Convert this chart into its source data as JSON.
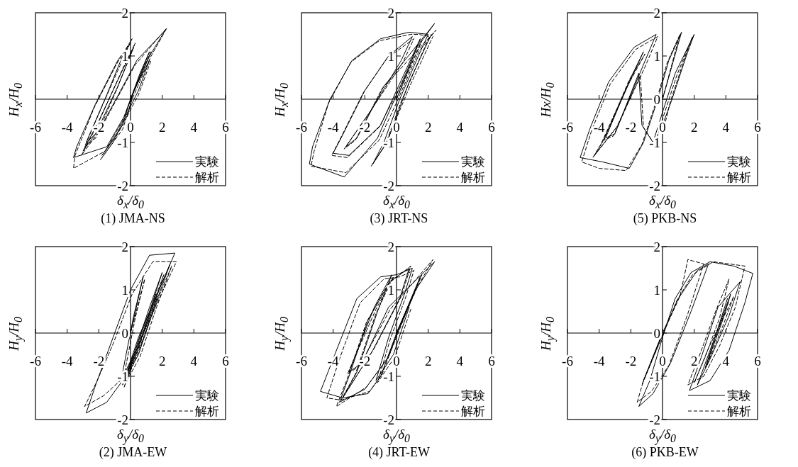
{
  "chart_data": [
    {
      "type": "line",
      "title": "(1) JMA-NS",
      "xlabel": "δ$_{x}$/δ$_{0}$",
      "ylabel": "H$_{x}$/H$_{0}$",
      "xlim": [
        -6,
        6
      ],
      "ylim": [
        -2,
        2
      ],
      "xticks": [
        -6,
        -4,
        -2,
        0,
        2,
        4,
        6
      ],
      "yticks": [
        -2,
        -1,
        1,
        2
      ],
      "legend": "bottom right",
      "grid": false,
      "marker": "none",
      "series": [
        {
          "name": "実験",
          "color": "#000000",
          "line_style": "solid",
          "x": [
            0,
            1.2,
            0.6,
            -0.4,
            -1.5,
            -3.6,
            -3.4,
            -2.2,
            -0.8,
            0,
            -0.5,
            -1.5,
            -2.8,
            -2.2,
            -0.8,
            0.2,
            -0.6,
            -2,
            -3,
            -1.8,
            0.4,
            2.2,
            1.2,
            0,
            -0.5,
            -1.8,
            -1,
            0.5,
            1.2,
            0.2,
            -0.2
          ],
          "values": [
            0,
            1.1,
            0.6,
            -0.4,
            -1.1,
            -1.35,
            -1.1,
            -0.1,
            0.9,
            1.3,
            1,
            0.1,
            -1,
            -0.8,
            0.3,
            1.2,
            0.6,
            -0.5,
            -1.2,
            -0.6,
            0.9,
            1.6,
            1,
            0,
            -0.6,
            -1.3,
            -0.9,
            0.2,
            0.9,
            0.2,
            -0.4
          ]
        },
        {
          "name": "解析",
          "color": "#000000",
          "line_style": "dashed",
          "x": [
            0,
            1.3,
            0.6,
            -0.5,
            -1.6,
            -3.6,
            -3.5,
            -2.3,
            -0.9,
            0.1,
            -0.4,
            -1.6,
            -2.9,
            -2.2,
            -0.9,
            0.3,
            -0.5,
            -2.1,
            -3.1,
            -1.9,
            0.3,
            2.3,
            1.3,
            0.1,
            -0.5,
            -1.9,
            -1.1,
            0.5,
            1.3
          ],
          "values": [
            0,
            1.1,
            0.55,
            -0.5,
            -1.2,
            -1.6,
            -1.3,
            -0.2,
            0.8,
            1.4,
            1,
            0,
            -1.1,
            -0.9,
            0.2,
            1.3,
            0.7,
            -0.6,
            -1.3,
            -0.7,
            0.8,
            1.65,
            1,
            0,
            -0.7,
            -1.4,
            -1,
            0.1,
            0.9
          ]
        }
      ]
    },
    {
      "type": "line",
      "title": "(3) JRT-NS",
      "xlabel": "δ$_{x}$/δ$_{0}$",
      "ylabel": "H$_{x}$/H$_{0}$",
      "xlim": [
        -6,
        6
      ],
      "ylim": [
        -2,
        2
      ],
      "xticks": [
        -6,
        -4,
        -2,
        0,
        2,
        4,
        6
      ],
      "yticks": [
        -2,
        -1,
        1,
        2
      ],
      "legend": "bottom right",
      "grid": false,
      "marker": "none",
      "series": [
        {
          "name": "実験",
          "color": "#000000",
          "line_style": "solid",
          "x": [
            0,
            1.5,
            0.5,
            -1,
            -3,
            -4,
            -3.5,
            -2,
            -0.5,
            1,
            0.3,
            -1.5,
            -3.2,
            -2.5,
            -0.8,
            2.4,
            1.3,
            0,
            -1.2,
            -3.3,
            -5.5,
            -5.3,
            -4.2,
            -2.8,
            -1,
            0.8,
            2,
            1.5,
            0.2,
            -0.8,
            -1.5,
            -0.6,
            0.8,
            2.2
          ],
          "values": [
            0,
            1.4,
            0.6,
            -0.6,
            -1.3,
            -1.25,
            -0.9,
            0.2,
            1,
            1.45,
            0.9,
            -0.2,
            -1.1,
            -0.9,
            0.3,
            1.75,
            1.2,
            0.1,
            -0.9,
            -1.8,
            -1.5,
            -1.1,
            0,
            0.9,
            1.4,
            1.55,
            1.5,
            1.1,
            0,
            -1,
            -1.5,
            -1,
            0.4,
            1.5
          ]
        },
        {
          "name": "解析",
          "color": "#000000",
          "line_style": "dashed",
          "x": [
            0,
            1.6,
            0.6,
            -1.1,
            -3.1,
            -4.1,
            -3.6,
            -2.1,
            -0.6,
            1.1,
            0.4,
            -1.6,
            -3.3,
            -2.6,
            -0.9,
            2.5,
            1.4,
            0.1,
            -1.1,
            -3.2,
            -5.4,
            -5.2,
            -4.3,
            -2.9,
            -1.1,
            0.9,
            1.4,
            2.1,
            1.6,
            0.3,
            -0.7,
            -1.6,
            -0.7,
            0.9,
            2.3
          ],
          "values": [
            0,
            1.35,
            0.55,
            -0.65,
            -1.35,
            -1.3,
            -0.95,
            0.15,
            0.95,
            1.4,
            0.85,
            -0.25,
            -1.15,
            -0.95,
            0.25,
            1.6,
            1.1,
            0,
            -0.95,
            -1.7,
            -1.55,
            -1.2,
            -0.1,
            0.85,
            1.35,
            1.5,
            1.5,
            1.45,
            1.05,
            -0.05,
            -1.05,
            -1.55,
            -1.05,
            0.35,
            1.45
          ]
        }
      ]
    },
    {
      "type": "line",
      "title": "(5) PKB-NS",
      "xlabel": "δ$_{x}$/δ$_{0}$",
      "ylabel": "Hx/H$_{0}$",
      "xlim": [
        -6,
        6
      ],
      "ylim": [
        -2,
        2
      ],
      "xticks": [
        -6,
        -4,
        -2,
        0,
        2,
        4,
        6
      ],
      "yticks": [
        -2,
        -1,
        0,
        1,
        2
      ],
      "legend": "bottom right",
      "grid": false,
      "marker": "none",
      "series": [
        {
          "name": "実験",
          "color": "#000000",
          "line_style": "solid",
          "x": [
            0,
            1.2,
            0.4,
            -0.3,
            -1.2,
            -2.1,
            -3.8,
            -5.2,
            -4.6,
            -3.4,
            -1.8,
            -0.4,
            -1.2,
            -2.8,
            -4.3,
            -3.8,
            -2.2,
            -1.2,
            -2,
            -3.6,
            -3,
            -1.5,
            -1.3,
            -0.6,
            0,
            0.8,
            2,
            1.5,
            0.6,
            0
          ],
          "values": [
            0,
            1.55,
            0.9,
            0,
            -1,
            -1.6,
            -1.45,
            -1.35,
            -0.7,
            0.4,
            1.2,
            1.5,
            0.8,
            -0.6,
            -1.3,
            -1,
            0.3,
            1.1,
            0.5,
            -0.9,
            -0.8,
            0.6,
            -0.6,
            -1,
            -0.3,
            0.6,
            1.5,
            1,
            0,
            -0.6
          ]
        },
        {
          "name": "解析",
          "color": "#000000",
          "line_style": "dashed",
          "x": [
            0,
            1.1,
            0.3,
            -0.4,
            -1.3,
            -2.3,
            -4,
            -5.1,
            -4.5,
            -3.3,
            -1.7,
            -0.3,
            -1.1,
            -2.9,
            -4.4,
            -3.9,
            -2.3,
            -1.1,
            -2.1,
            -3.7,
            -3.1,
            -1.4,
            -1.2,
            -0.5,
            0.1,
            0.9,
            1.9,
            1.4,
            0.5,
            0.1
          ],
          "values": [
            0,
            1.5,
            0.85,
            -0.05,
            -1.05,
            -1.65,
            -1.6,
            -1.45,
            -0.75,
            0.35,
            1.15,
            1.45,
            0.75,
            -0.65,
            -1.35,
            -1.05,
            0.25,
            1.05,
            0.45,
            -0.95,
            -0.85,
            0.55,
            -0.65,
            -1.05,
            -0.35,
            0.55,
            1.45,
            0.95,
            -0.05,
            -0.65
          ]
        }
      ]
    },
    {
      "type": "line",
      "title": "(2) JMA-EW",
      "xlabel": "δ$_{y}$/δ$_{0}$",
      "ylabel": "H$_{y}$/H$_{0}$",
      "xlim": [
        -6,
        6
      ],
      "ylim": [
        -2,
        2
      ],
      "xticks": [
        -6,
        -4,
        -2,
        {
          "value": 0,
          "label": null
        },
        2,
        4,
        6
      ],
      "yticks": [
        -2,
        -1,
        0,
        1,
        2
      ],
      "legend": "bottom right",
      "grid": false,
      "marker": "none",
      "series": [
        {
          "name": "実験",
          "color": "#000000",
          "line_style": "solid",
          "x": [
            0,
            0.8,
            0.2,
            -0.6,
            0.2,
            1.2,
            2,
            1.2,
            0,
            -0.5,
            0.5,
            2.8,
            1.2,
            0,
            -1.2,
            -2.2,
            -2.8,
            -1.5,
            -0.3,
            0.8,
            1.8,
            2.5,
            1.5,
            0.5,
            -0.4,
            0.6,
            1.6
          ],
          "values": [
            0,
            1.3,
            0.4,
            -1.1,
            -0.5,
            0.6,
            1.4,
            0.5,
            -0.7,
            -1.2,
            -0.1,
            1.85,
            1.8,
            1,
            -0.2,
            -1.2,
            -1.85,
            -1.6,
            -1,
            0,
            1,
            1.6,
            0.6,
            -0.5,
            -1.1,
            -0.2,
            0.9
          ]
        },
        {
          "name": "解析",
          "color": "#000000",
          "line_style": "dashed",
          "x": [
            0,
            0.9,
            0.3,
            -0.5,
            0.3,
            1.3,
            2.1,
            1.3,
            0.1,
            -0.4,
            0.6,
            2.9,
            1.4,
            0.1,
            -1.1,
            -2.1,
            -2.9,
            -1.7,
            -0.2,
            0.9,
            1.9,
            2.6,
            1.6,
            0.6,
            -0.3,
            0.7,
            1.7
          ],
          "values": [
            0,
            1.25,
            0.35,
            -1.15,
            -0.55,
            0.55,
            1.35,
            0.45,
            -0.75,
            -1.25,
            -0.15,
            1.65,
            1.65,
            0.9,
            -0.25,
            -1.1,
            -1.7,
            -1.45,
            -0.95,
            -0.05,
            0.95,
            1.55,
            0.55,
            -0.55,
            -1.15,
            -0.25,
            0.85
          ]
        }
      ]
    },
    {
      "type": "line",
      "title": "(4) JRT-EW",
      "xlabel": "δ$_{y}$/δ$_{0}$",
      "ylabel": "H$_{y}$/H$_{0}$",
      "xlim": [
        -6,
        6
      ],
      "ylim": [
        -2,
        2
      ],
      "xticks": [
        -6,
        -4,
        -2,
        0,
        2,
        4,
        6
      ],
      "yticks": [
        -2,
        -1,
        1,
        2
      ],
      "legend": "bottom right",
      "grid": false,
      "marker": "none",
      "series": [
        {
          "name": "実験",
          "color": "#000000",
          "line_style": "solid",
          "x": [
            0,
            1.5,
            0.6,
            -0.6,
            -2,
            -3.6,
            -3,
            -1.8,
            -0.4,
            0.8,
            0.2,
            -1.5,
            -3.4,
            -2.5,
            -1.2,
            -0.3,
            -1.4,
            -3,
            -2.2,
            -0.5,
            2.4,
            1.2,
            0,
            -1,
            -1.8,
            -3.4,
            -4.8,
            -3.9,
            -2.5,
            -1,
            0,
            1,
            0.5,
            -0.5,
            -1.3,
            -0.2,
            0.8
          ],
          "values": [
            0,
            1.3,
            0.5,
            -0.6,
            -1.3,
            -1.6,
            -1,
            0.3,
            1.2,
            1.5,
            0.8,
            -0.4,
            -1.5,
            -0.9,
            0.5,
            1.35,
            0.6,
            -0.9,
            -0.7,
            0.6,
            1.65,
            1,
            0,
            -1,
            -1.4,
            -1.5,
            -1.35,
            -0.5,
            0.8,
            1.3,
            1.35,
            1.5,
            0.9,
            -0.1,
            -1.1,
            -0.5,
            0.6
          ]
        },
        {
          "name": "解析",
          "color": "#000000",
          "line_style": "dashed",
          "x": [
            0,
            1.6,
            0.7,
            -0.5,
            -1.9,
            -3.8,
            -3.1,
            -1.9,
            -0.5,
            0.9,
            0.3,
            -1.4,
            -3.5,
            -2.6,
            -1.3,
            -0.2,
            -1.3,
            -3.1,
            -2.3,
            -0.4,
            2.3,
            1.3,
            0.1,
            -0.9,
            -1.7,
            -3.5,
            -4.4,
            -3.6,
            -2.3,
            -0.8,
            0.2,
            1.1,
            0.6,
            -0.4,
            -1.2,
            -0.1,
            0.9
          ],
          "values": [
            0,
            1.35,
            0.55,
            -0.55,
            -1.25,
            -1.7,
            -1.05,
            0.25,
            1.15,
            1.55,
            0.85,
            -0.35,
            -1.55,
            -0.95,
            0.45,
            1.3,
            0.55,
            -0.95,
            -0.75,
            0.55,
            1.7,
            1.05,
            0.05,
            -0.95,
            -1.35,
            -1.55,
            -1.5,
            -0.6,
            0.7,
            1.25,
            1.3,
            1.45,
            0.85,
            -0.15,
            -1.15,
            -0.55,
            0.55
          ]
        }
      ]
    },
    {
      "type": "line",
      "title": "(6) PKB-EW",
      "xlabel": "δ$_{y}$/δ$_{0}$",
      "ylabel": "H$_{y}$/H$_{0}$",
      "xlim": [
        -6,
        6
      ],
      "ylim": [
        -2,
        2
      ],
      "xticks": [
        -6,
        -4,
        -2,
        0,
        2,
        4,
        6
      ],
      "yticks": [
        -2,
        -1,
        0,
        1,
        2
      ],
      "legend": "bottom right",
      "grid": false,
      "marker": "none",
      "series": [
        {
          "name": "実験",
          "color": "#000000",
          "line_style": "solid",
          "x": [
            0,
            -1.2,
            0,
            1,
            2.2,
            2.9,
            1.8,
            0.5,
            -0.6,
            -1.5,
            -0.8,
            0,
            0.8,
            1.8,
            3,
            4.5,
            5.7,
            5.2,
            4.2,
            3,
            1.7,
            2.5,
            3.5,
            4.9,
            4.2,
            3,
            2.2,
            3,
            4.3,
            3.8,
            2.7,
            3.4,
            4.1
          ],
          "values": [
            0,
            -1.1,
            0,
            0.8,
            1.45,
            1.6,
            0.5,
            -0.7,
            -1.4,
            -1.7,
            -1.1,
            -0.1,
            0.8,
            1.4,
            1.65,
            1.55,
            1.38,
            0.7,
            -0.4,
            -1.1,
            -1.33,
            -0.5,
            0.6,
            1.19,
            0.4,
            -0.6,
            -1.2,
            -0.4,
            0.9,
            0.3,
            -0.8,
            0,
            0.8
          ]
        },
        {
          "name": "解析",
          "color": "#000000",
          "line_style": "dashed",
          "x": [
            0,
            -1.3,
            0.1,
            1.1,
            1.6,
            2.6,
            1.6,
            0.4,
            -0.7,
            -1.6,
            -1.2,
            -0.1,
            0.9,
            1.9,
            3.2,
            5.2,
            4.6,
            3.6,
            2.6,
            1.6,
            2.4,
            3.4,
            4.2,
            3.6,
            2.7,
            2,
            2.9,
            4.5,
            3.9,
            2.8,
            3.5,
            4.2
          ],
          "values": [
            0,
            -1.2,
            0.05,
            0.85,
            1.7,
            1.6,
            0.45,
            -0.75,
            -1.35,
            -1.6,
            -1.1,
            -0.15,
            0.75,
            1.35,
            1.65,
            1.55,
            0.6,
            -0.3,
            -1,
            -1.2,
            -0.45,
            0.55,
            1.25,
            0.35,
            -0.55,
            -1.15,
            -0.35,
            0.85,
            0.25,
            -0.75,
            0.05,
            0.75
          ]
        }
      ]
    }
  ]
}
